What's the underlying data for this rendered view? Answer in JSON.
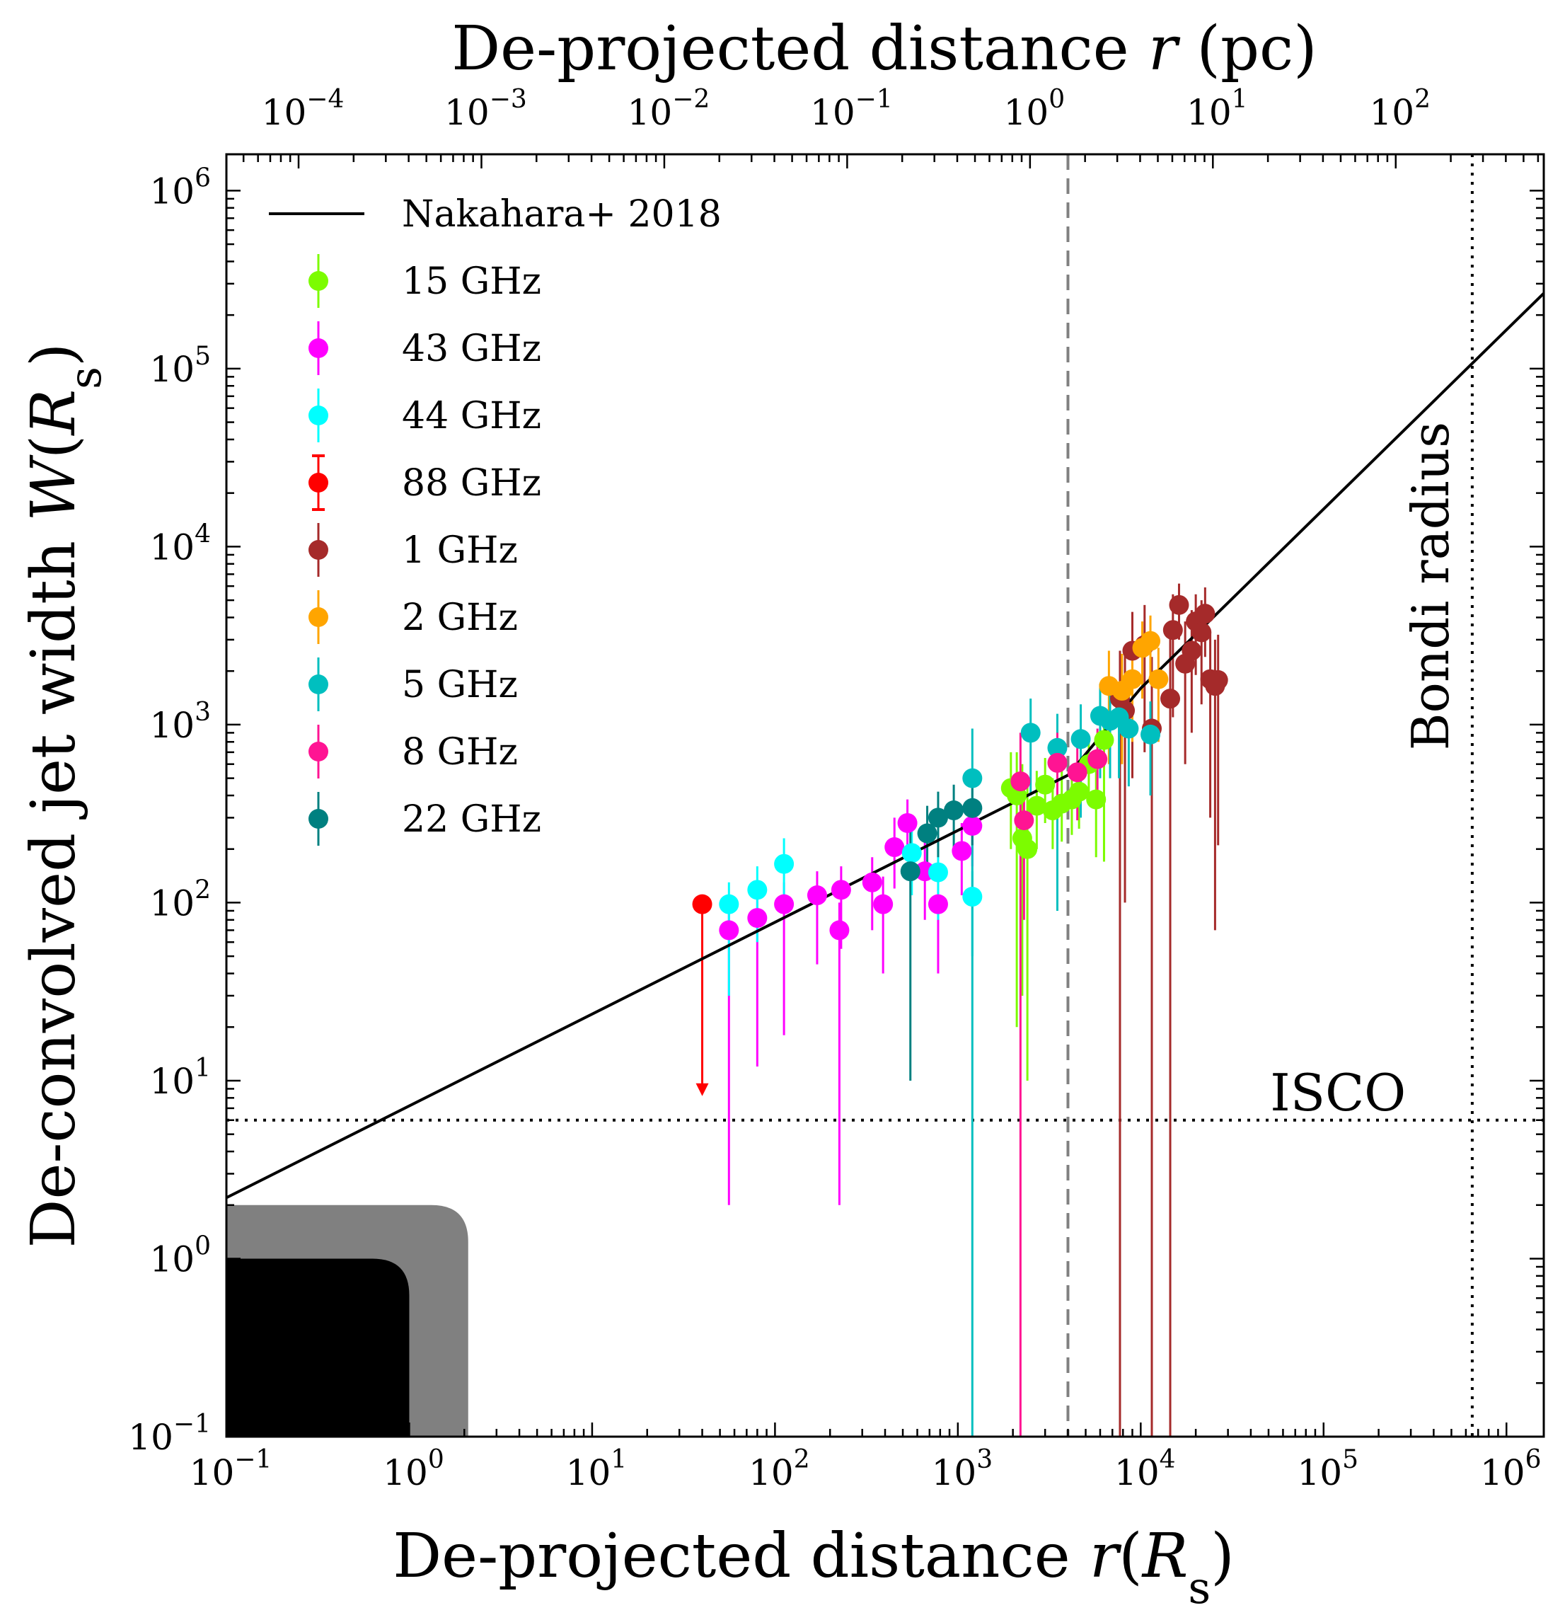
{
  "chart_data": {
    "type": "scatter",
    "title": "",
    "xlabel": "De-projected distance r(R_s)",
    "ylabel": "De-convolved jet width W(R_s)",
    "top_xlabel": "De-projected distance r (pc)",
    "xscale": "log",
    "yscale": "log",
    "xlim": [
      0.1,
      1600000
    ],
    "ylim": [
      0.1,
      1600000
    ],
    "top_xlim": [
      4.03e-05,
      645
    ],
    "x_ticks": [
      {
        "value": 0.1,
        "base": "10",
        "exp": "−1"
      },
      {
        "value": 1,
        "base": "10",
        "exp": "0"
      },
      {
        "value": 10,
        "base": "10",
        "exp": "1"
      },
      {
        "value": 100,
        "base": "10",
        "exp": "2"
      },
      {
        "value": 1000,
        "base": "10",
        "exp": "3"
      },
      {
        "value": 10000,
        "base": "10",
        "exp": "4"
      },
      {
        "value": 100000,
        "base": "10",
        "exp": "5"
      },
      {
        "value": 1000000,
        "base": "10",
        "exp": "6"
      }
    ],
    "y_ticks": [
      {
        "value": 0.1,
        "base": "10",
        "exp": "−1"
      },
      {
        "value": 1,
        "base": "10",
        "exp": "0"
      },
      {
        "value": 10,
        "base": "10",
        "exp": "1"
      },
      {
        "value": 100,
        "base": "10",
        "exp": "2"
      },
      {
        "value": 1000,
        "base": "10",
        "exp": "3"
      },
      {
        "value": 10000,
        "base": "10",
        "exp": "4"
      },
      {
        "value": 100000,
        "base": "10",
        "exp": "5"
      },
      {
        "value": 1000000,
        "base": "10",
        "exp": "6"
      }
    ],
    "top_ticks": [
      {
        "value": 0.0001,
        "base": "10",
        "exp": "−4"
      },
      {
        "value": 0.001,
        "base": "10",
        "exp": "−3"
      },
      {
        "value": 0.01,
        "base": "10",
        "exp": "−2"
      },
      {
        "value": 0.1,
        "base": "10",
        "exp": "−1"
      },
      {
        "value": 1,
        "base": "10",
        "exp": "0"
      },
      {
        "value": 10,
        "base": "10",
        "exp": "1"
      },
      {
        "value": 100,
        "base": "10",
        "exp": "2"
      }
    ],
    "model_line": {
      "name": "Nakahara+ 2018",
      "color": "#000000",
      "points": [
        [
          0.1,
          2.2
        ],
        [
          4000,
          520
        ],
        [
          10000,
          1600
        ],
        [
          1600000,
          265000
        ]
      ]
    },
    "hlines": [
      {
        "y": 6,
        "label": "ISCO",
        "style": "dotted",
        "color": "#000000"
      }
    ],
    "vlines": [
      {
        "x": 4000,
        "label": "",
        "style": "dashed",
        "color": "#808080"
      },
      {
        "x": 650000,
        "label": "Bondi radius",
        "style": "dotted",
        "color": "#000000"
      }
    ],
    "shaded_regions": [
      {
        "color": "#808080",
        "x_max": 2.1,
        "y_max": 2
      },
      {
        "color": "#000000",
        "x_max": 1.0,
        "y_max": 1
      }
    ],
    "series": [
      {
        "name": "15 GHz",
        "color": "#7cfc00",
        "points": [
          {
            "x": 1950,
            "y": 440,
            "lo": 200,
            "hi": 700
          },
          {
            "x": 2100,
            "y": 400,
            "lo": 20,
            "hi": 700
          },
          {
            "x": 2250,
            "y": 230,
            "lo": 30,
            "hi": 600
          },
          {
            "x": 2400,
            "y": 200,
            "lo": 10,
            "hi": 500
          },
          {
            "x": 2700,
            "y": 350,
            "lo": 200,
            "hi": 550
          },
          {
            "x": 3000,
            "y": 460,
            "lo": 280,
            "hi": 650
          },
          {
            "x": 3300,
            "y": 330,
            "lo": 200,
            "hi": 500
          },
          {
            "x": 3700,
            "y": 360,
            "lo": 220,
            "hi": 600
          },
          {
            "x": 4200,
            "y": 380,
            "lo": 240,
            "hi": 560
          },
          {
            "x": 4600,
            "y": 420,
            "lo": 260,
            "hi": 620
          },
          {
            "x": 5200,
            "y": 600,
            "lo": 380,
            "hi": 820
          },
          {
            "x": 5700,
            "y": 380,
            "lo": 180,
            "hi": 560
          },
          {
            "x": 6300,
            "y": 820,
            "lo": 170,
            "hi": 1100
          }
        ]
      },
      {
        "name": "43 GHz",
        "color": "#ff00ff",
        "points": [
          {
            "x": 56,
            "y": 70,
            "lo": 2,
            "hi": 100
          },
          {
            "x": 80,
            "y": 82,
            "lo": 12,
            "hi": 110
          },
          {
            "x": 112,
            "y": 98,
            "lo": 18,
            "hi": 130
          },
          {
            "x": 170,
            "y": 110,
            "lo": 45,
            "hi": 150
          },
          {
            "x": 225,
            "y": 70,
            "lo": 2,
            "hi": 100
          },
          {
            "x": 230,
            "y": 118,
            "lo": 55,
            "hi": 160
          },
          {
            "x": 340,
            "y": 130,
            "lo": 70,
            "hi": 180
          },
          {
            "x": 390,
            "y": 98,
            "lo": 40,
            "hi": 140
          },
          {
            "x": 450,
            "y": 205,
            "lo": 120,
            "hi": 300
          },
          {
            "x": 530,
            "y": 280,
            "lo": 180,
            "hi": 380
          },
          {
            "x": 660,
            "y": 150,
            "lo": 80,
            "hi": 240
          },
          {
            "x": 780,
            "y": 98,
            "lo": 40,
            "hi": 160
          },
          {
            "x": 1050,
            "y": 195,
            "lo": 110,
            "hi": 280
          },
          {
            "x": 1200,
            "y": 270,
            "lo": 160,
            "hi": 380
          }
        ]
      },
      {
        "name": "44 GHz",
        "color": "#00ffff",
        "points": [
          {
            "x": 56,
            "y": 98,
            "lo": 30,
            "hi": 130
          },
          {
            "x": 80,
            "y": 118,
            "lo": 60,
            "hi": 160
          },
          {
            "x": 112,
            "y": 165,
            "lo": 100,
            "hi": 230
          },
          {
            "x": 560,
            "y": 190,
            "lo": 110,
            "hi": 260
          },
          {
            "x": 780,
            "y": 148,
            "lo": 80,
            "hi": 200
          },
          {
            "x": 1200,
            "y": 108,
            "lo": 50,
            "hi": 150
          }
        ]
      },
      {
        "name": "88 GHz",
        "color": "#ff0000",
        "upper_limit": true,
        "points": [
          {
            "x": 40,
            "y": 98,
            "lo": 8.5,
            "hi": 98
          }
        ]
      },
      {
        "name": "1 GHz",
        "color": "#a52a2a",
        "points": [
          {
            "x": 7700,
            "y": 1400,
            "lo": 0.1,
            "hi": 2600
          },
          {
            "x": 8200,
            "y": 1200,
            "lo": 100,
            "hi": 2500
          },
          {
            "x": 9000,
            "y": 2600,
            "lo": 500,
            "hi": 4300
          },
          {
            "x": 10500,
            "y": 2800,
            "lo": 700,
            "hi": 4700
          },
          {
            "x": 11500,
            "y": 950,
            "lo": 0.1,
            "hi": 2400
          },
          {
            "x": 14500,
            "y": 1400,
            "lo": 0.1,
            "hi": 3200
          },
          {
            "x": 15000,
            "y": 3400,
            "lo": 1100,
            "hi": 5400
          },
          {
            "x": 16200,
            "y": 4700,
            "lo": 3000,
            "hi": 6200
          },
          {
            "x": 17500,
            "y": 2200,
            "lo": 600,
            "hi": 3800
          },
          {
            "x": 19000,
            "y": 2600,
            "lo": 900,
            "hi": 4400
          },
          {
            "x": 20000,
            "y": 3800,
            "lo": 1900,
            "hi": 5400
          },
          {
            "x": 21500,
            "y": 3300,
            "lo": 1300,
            "hi": 5000
          },
          {
            "x": 22500,
            "y": 4200,
            "lo": 2400,
            "hi": 5900
          },
          {
            "x": 24000,
            "y": 1800,
            "lo": 300,
            "hi": 3300
          },
          {
            "x": 25500,
            "y": 1650,
            "lo": 70,
            "hi": 3000
          },
          {
            "x": 26500,
            "y": 1780,
            "lo": 210,
            "hi": 3200
          }
        ]
      },
      {
        "name": "2 GHz",
        "color": "#ffa500",
        "points": [
          {
            "x": 6700,
            "y": 1650,
            "lo": 600,
            "hi": 2600
          },
          {
            "x": 7900,
            "y": 1550,
            "lo": 600,
            "hi": 2500
          },
          {
            "x": 9000,
            "y": 1800,
            "lo": 800,
            "hi": 2800
          },
          {
            "x": 10200,
            "y": 2700,
            "lo": 1400,
            "hi": 3800
          },
          {
            "x": 11300,
            "y": 2950,
            "lo": 1700,
            "hi": 4100
          },
          {
            "x": 12500,
            "y": 1800,
            "lo": 800,
            "hi": 2700
          }
        ]
      },
      {
        "name": "5 GHz",
        "color": "#00bfbf",
        "points": [
          {
            "x": 1200,
            "y": 500,
            "lo": 0.1,
            "hi": 950
          },
          {
            "x": 2500,
            "y": 900,
            "lo": 400,
            "hi": 1400
          },
          {
            "x": 3500,
            "y": 740,
            "lo": 90,
            "hi": 1150
          },
          {
            "x": 4700,
            "y": 830,
            "lo": 300,
            "hi": 1300
          },
          {
            "x": 6000,
            "y": 1120,
            "lo": 500,
            "hi": 1700
          },
          {
            "x": 6800,
            "y": 1050,
            "lo": 500,
            "hi": 1600
          },
          {
            "x": 7600,
            "y": 1100,
            "lo": 500,
            "hi": 1700
          },
          {
            "x": 8600,
            "y": 950,
            "lo": 450,
            "hi": 1450
          },
          {
            "x": 11300,
            "y": 880,
            "lo": 400,
            "hi": 1350
          }
        ]
      },
      {
        "name": "8 GHz",
        "color": "#ff1493",
        "points": [
          {
            "x": 2200,
            "y": 480,
            "lo": 0.1,
            "hi": 900
          },
          {
            "x": 2300,
            "y": 290,
            "lo": 80,
            "hi": 500
          },
          {
            "x": 3500,
            "y": 610,
            "lo": 300,
            "hi": 900
          },
          {
            "x": 4500,
            "y": 540,
            "lo": 290,
            "hi": 800
          },
          {
            "x": 5800,
            "y": 640,
            "lo": 350,
            "hi": 950
          }
        ]
      },
      {
        "name": "22 GHz",
        "color": "#008080",
        "points": [
          {
            "x": 550,
            "y": 150,
            "lo": 10,
            "hi": 260
          },
          {
            "x": 680,
            "y": 245,
            "lo": 140,
            "hi": 350
          },
          {
            "x": 780,
            "y": 300,
            "lo": 180,
            "hi": 420
          },
          {
            "x": 950,
            "y": 330,
            "lo": 200,
            "hi": 460
          },
          {
            "x": 1200,
            "y": 340,
            "lo": 210,
            "hi": 480
          }
        ]
      }
    ]
  }
}
